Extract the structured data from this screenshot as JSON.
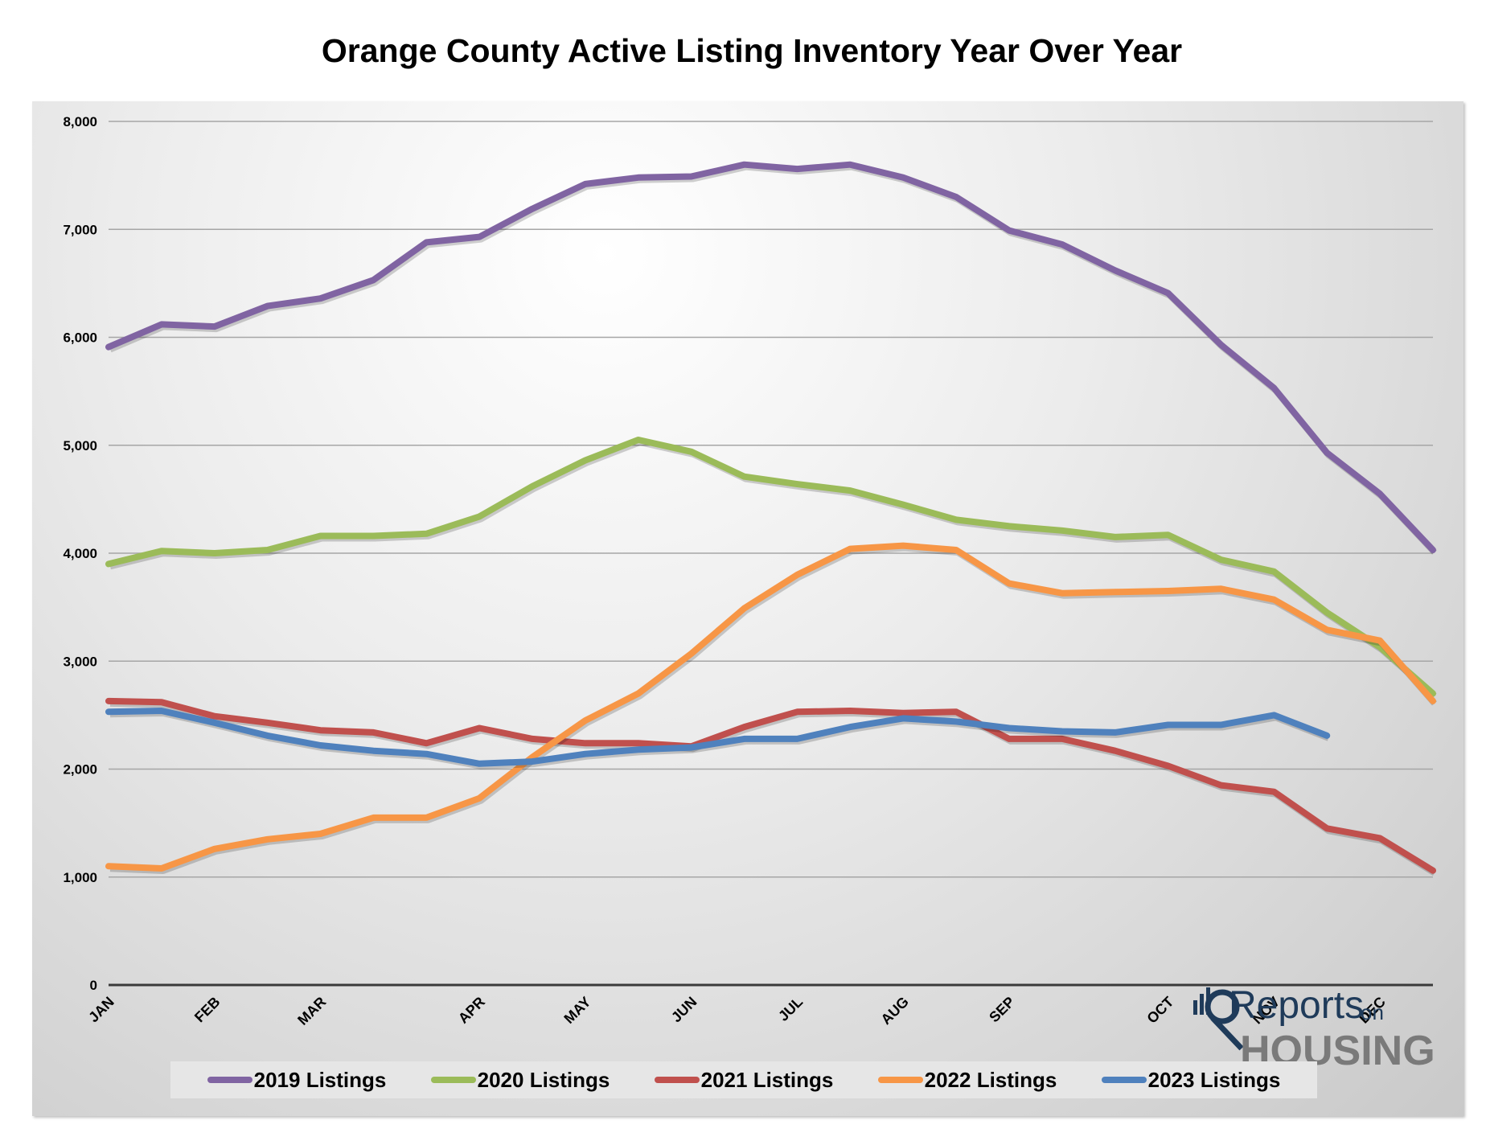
{
  "colors": {
    "2019": "#8064a2",
    "2020": "#9bbb59",
    "2021": "#c0504d",
    "2022": "#f79646",
    "2023": "#4f81bd"
  },
  "logo": {
    "word1": "Reports",
    "word2": "on",
    "word3": "HOUSING"
  },
  "chart_data": {
    "type": "line",
    "title": "Orange County Active Listing Inventory Year Over Year",
    "xlabel": "",
    "ylabel": "",
    "ylim": [
      0,
      8000
    ],
    "yticks": [
      "0",
      "1,000",
      "2,000",
      "3,000",
      "4,000",
      "5,000",
      "6,000",
      "7,000",
      "8,000"
    ],
    "grid": true,
    "legend_position": "bottom",
    "x_points": 26,
    "x_tick_labels": [
      {
        "label": "JAN",
        "index": 0
      },
      {
        "label": "FEB",
        "index": 2
      },
      {
        "label": "MAR",
        "index": 4
      },
      {
        "label": "APR",
        "index": 7
      },
      {
        "label": "MAY",
        "index": 9
      },
      {
        "label": "JUN",
        "index": 11
      },
      {
        "label": "JUL",
        "index": 13
      },
      {
        "label": "AUG",
        "index": 15
      },
      {
        "label": "SEP",
        "index": 17
      },
      {
        "label": "OCT",
        "index": 20
      },
      {
        "label": "NOV",
        "index": 22
      },
      {
        "label": "DEC",
        "index": 24
      }
    ],
    "series": [
      {
        "name": "2019 Listings",
        "color_key": "2019",
        "values": [
          5910,
          6120,
          6100,
          6290,
          6360,
          6530,
          6880,
          6930,
          7190,
          7420,
          7480,
          7490,
          7600,
          7560,
          7600,
          7480,
          7300,
          6990,
          6860,
          6620,
          6410,
          5930,
          5530,
          4930,
          4550,
          4030
        ]
      },
      {
        "name": "2020 Listings",
        "color_key": "2020",
        "values": [
          3900,
          4020,
          4000,
          4030,
          4160,
          4160,
          4180,
          4340,
          4620,
          4860,
          5050,
          4940,
          4710,
          4640,
          4580,
          4450,
          4310,
          4250,
          4210,
          4150,
          4170,
          3940,
          3830,
          3450,
          3130,
          2700
        ]
      },
      {
        "name": "2021 Listings",
        "color_key": "2021",
        "values": [
          2630,
          2620,
          2490,
          2430,
          2360,
          2340,
          2240,
          2380,
          2280,
          2240,
          2240,
          2210,
          2390,
          2530,
          2540,
          2520,
          2530,
          2280,
          2280,
          2170,
          2030,
          1850,
          1790,
          1450,
          1360,
          1060
        ]
      },
      {
        "name": "2022 Listings",
        "color_key": "2022",
        "values": [
          1100,
          1080,
          1260,
          1350,
          1400,
          1550,
          1550,
          1730,
          2110,
          2450,
          2700,
          3070,
          3490,
          3800,
          4040,
          4070,
          4030,
          3720,
          3630,
          3640,
          3650,
          3670,
          3570,
          3290,
          3190,
          2630
        ]
      },
      {
        "name": "2023 Listings",
        "color_key": "2023",
        "values": [
          2530,
          2540,
          2430,
          2310,
          2220,
          2170,
          2140,
          2050,
          2070,
          2140,
          2180,
          2200,
          2280,
          2280,
          2390,
          2470,
          2440,
          2380,
          2350,
          2340,
          2410,
          2410,
          2500,
          2310
        ]
      }
    ]
  }
}
